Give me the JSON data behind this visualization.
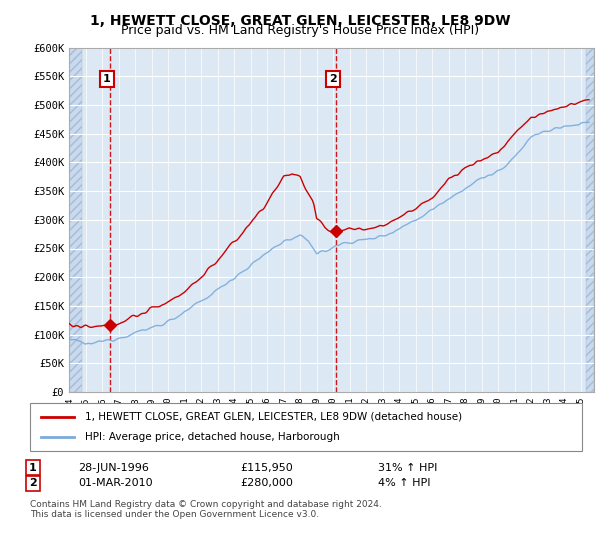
{
  "title": "1, HEWETT CLOSE, GREAT GLEN, LEICESTER, LE8 9DW",
  "subtitle": "Price paid vs. HM Land Registry's House Price Index (HPI)",
  "ylim": [
    0,
    600000
  ],
  "yticks": [
    0,
    50000,
    100000,
    150000,
    200000,
    250000,
    300000,
    350000,
    400000,
    450000,
    500000,
    550000,
    600000
  ],
  "ytick_labels": [
    "£0",
    "£50K",
    "£100K",
    "£150K",
    "£200K",
    "£250K",
    "£300K",
    "£350K",
    "£400K",
    "£450K",
    "£500K",
    "£550K",
    "£600K"
  ],
  "sale1_year": 1996.49,
  "sale1_price": 115950,
  "sale2_year": 2010.17,
  "sale2_price": 280000,
  "legend_line1": "1, HEWETT CLOSE, GREAT GLEN, LEICESTER, LE8 9DW (detached house)",
  "legend_line2": "HPI: Average price, detached house, Harborough",
  "table_row1_date": "28-JUN-1996",
  "table_row1_price": "£115,950",
  "table_row1_hpi": "31% ↑ HPI",
  "table_row2_date": "01-MAR-2010",
  "table_row2_price": "£280,000",
  "table_row2_hpi": "4% ↑ HPI",
  "footnote": "Contains HM Land Registry data © Crown copyright and database right 2024.\nThis data is licensed under the Open Government Licence v3.0.",
  "line_color_red": "#cc0000",
  "line_color_blue": "#7aabdb",
  "vline_color": "#cc0000",
  "bg_color": "#dce9f5",
  "grid_color": "#ffffff",
  "title_fontsize": 10,
  "subtitle_fontsize": 9
}
